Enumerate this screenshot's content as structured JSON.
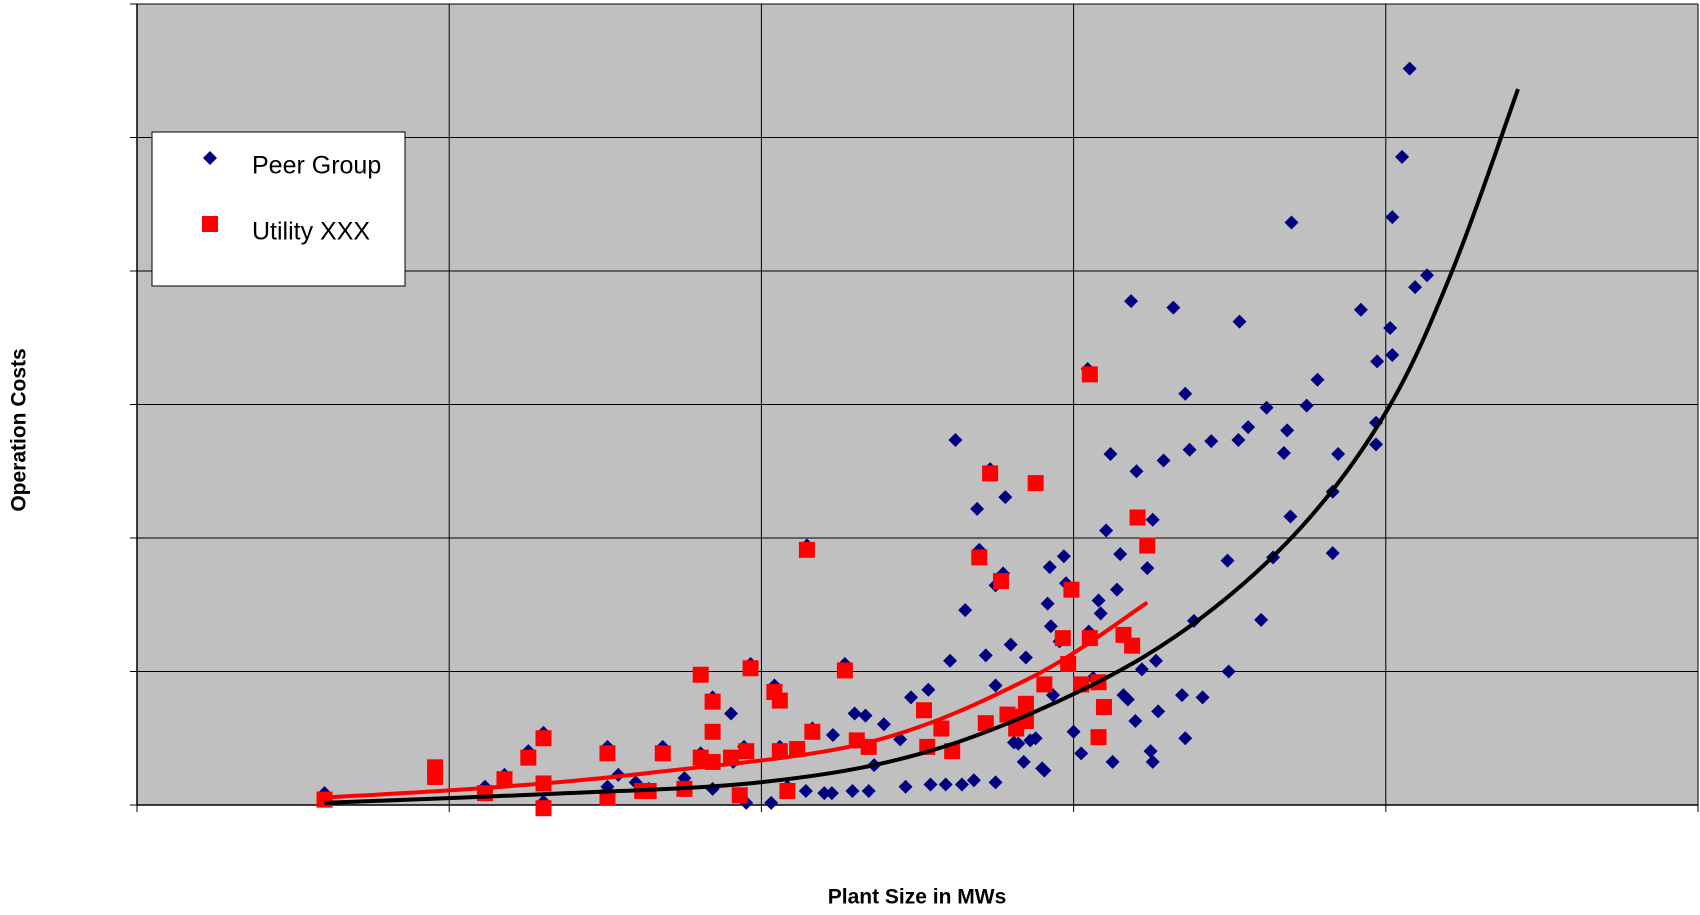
{
  "chart_data": {
    "type": "scatter",
    "x_label": "Plant Size in MWs",
    "y_label": "Operation Costs",
    "xlim": [
      0,
      1440
    ],
    "xticks": [
      0,
      288,
      576,
      864,
      1152,
      1440
    ],
    "ylim": [
      0,
      744
    ],
    "yticks": [
      0,
      124,
      248,
      372,
      496,
      620,
      744
    ],
    "grid": true,
    "legend": "upper left",
    "background": "#c0c0c0",
    "series": [
      {
        "name": "Peer Group",
        "color": "#000080",
        "marker": "diamond",
        "x": [
          173,
          321,
          339,
          361,
          375,
          375,
          434,
          434,
          444,
          460,
          472,
          485,
          505,
          520,
          531,
          531,
          548,
          550,
          560,
          562,
          566,
          585,
          588,
          593,
          600,
          617,
          618,
          623,
          634,
          641,
          642,
          653,
          660,
          662,
          672,
          675,
          680,
          689,
          704,
          709,
          714,
          730,
          732,
          742,
          746,
          750,
          755,
          761,
          764,
          772,
          775,
          777,
          783,
          787,
          792,
          792,
          799,
          801,
          806,
          813,
          818,
          820,
          824,
          829,
          837,
          840,
          842,
          843,
          845,
          851,
          855,
          857,
          864,
          871,
          877,
          878,
          882,
          887,
          894,
          898,
          900,
          904,
          907,
          910,
          917,
          921,
          922,
          927,
          932,
          937,
          937,
          942,
          947,
          956,
          964,
          967,
          967,
          971,
          975,
          983,
          991,
          1006,
          1007,
          1016,
          1017,
          1025,
          1037,
          1042,
          1048,
          1058,
          1061,
          1064,
          1065,
          1079,
          1089,
          1103,
          1103,
          1108,
          1129,
          1143,
          1143,
          1144,
          1156,
          1158,
          1158,
          1167,
          1174,
          1179,
          1190,
          940,
          914,
          889,
          835,
          809,
          792,
          935
        ],
        "values": [
          11,
          17,
          28,
          50,
          67,
          3,
          54,
          17,
          28,
          21,
          15,
          54,
          25,
          48,
          100,
          15,
          85,
          40,
          54,
          2,
          131,
          2,
          111,
          54,
          17,
          13,
          241,
          71,
          11,
          11,
          65,
          131,
          13,
          85,
          83,
          13,
          37,
          75,
          61,
          17,
          100,
          107,
          19,
          71,
          19,
          134,
          339,
          19,
          181,
          23,
          275,
          237,
          139,
          312,
          21,
          204,
          215,
          286,
          149,
          57,
          40,
          137,
          60,
          62,
          32,
          187,
          221,
          166,
          102,
          152,
          231,
          206,
          68,
          48,
          405,
          161,
          118,
          190,
          255,
          326,
          40,
          200,
          233,
          102,
          468,
          78,
          310,
          126,
          220,
          265,
          40,
          87,
          320,
          462,
          102,
          382,
          62,
          330,
          171,
          100,
          338,
          227,
          124,
          339,
          449,
          351,
          172,
          369,
          230,
          327,
          348,
          268,
          541,
          371,
          395,
          234,
          291,
          326,
          460,
          335,
          355,
          412,
          443,
          546,
          418,
          602,
          684,
          481,
          492,
          134,
          98,
          178,
          34,
          58,
          111,
          50
        ],
        "trendline": {
          "color": "#000000",
          "x": [
            173,
            374,
            574,
            724,
            864,
            974,
            1074,
            1154,
            1214,
            1274
          ],
          "y": [
            2,
            10,
            21,
            48,
            103,
            168,
            258,
            368,
            498,
            665
          ]
        }
      },
      {
        "name": "Utility XXX",
        "color": "#ff0000",
        "marker": "square",
        "x": [
          173,
          275,
          275,
          321,
          339,
          361,
          375,
          375,
          375,
          434,
          434,
          466,
          472,
          485,
          505,
          520,
          520,
          531,
          531,
          531,
          548,
          556,
          562,
          566,
          588,
          593,
          593,
          600,
          609,
          618,
          623,
          653,
          664,
          675,
          726,
          729,
          742,
          752,
          777,
          783,
          787,
          797,
          803,
          811,
          817,
          820,
          820,
          829,
          837,
          854,
          859,
          862,
          871,
          879,
          879,
          887,
          887,
          892,
          910,
          918,
          923,
          932
        ],
        "values": [
          5,
          35,
          26,
          11,
          24,
          44,
          62,
          -3,
          20,
          48,
          7,
          13,
          13,
          48,
          15,
          121,
          44,
          96,
          68,
          40,
          44,
          9,
          50,
          127,
          105,
          97,
          50,
          13,
          52,
          237,
          68,
          125,
          60,
          54,
          88,
          54,
          71,
          50,
          230,
          76,
          308,
          208,
          84,
          71,
          82,
          78,
          94,
          299,
          112,
          155,
          131,
          200,
          112,
          400,
          155,
          63,
          114,
          91,
          158,
          148,
          267,
          241
        ],
        "trendline": {
          "color": "#ff0000",
          "x": [
            173,
            324,
            474,
            674,
            824,
            932
          ],
          "y": [
            7,
            16,
            30,
            58,
            118,
            188
          ]
        }
      }
    ]
  }
}
